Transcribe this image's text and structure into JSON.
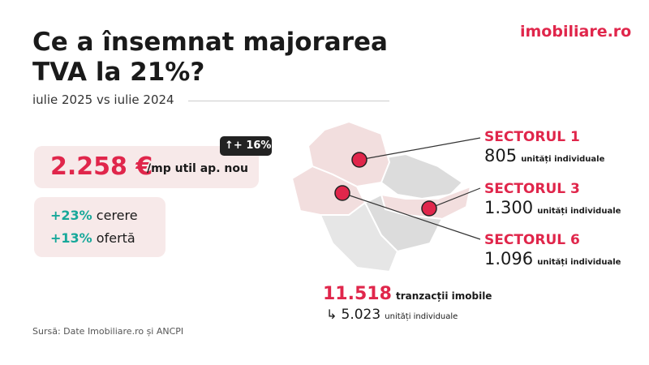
{
  "logo": "imobiliare.ro",
  "header": {
    "title_lines": [
      "Ce a însemnat majorarea",
      "TVA la 21%?"
    ],
    "subtitle": "iulie 2025 vs iulie 2024"
  },
  "price": {
    "value": "2.258 €",
    "unit": "/mp util ap. nou",
    "badge": "+ 16%"
  },
  "stats": [
    {
      "value": "+23%",
      "label": "cerere"
    },
    {
      "value": "+13%",
      "label": "ofertă"
    }
  ],
  "source": "Sursă: Date Imobiliare.ro și ANCPI",
  "sectors": [
    {
      "name": "SECTORUL 1",
      "value": "805",
      "unit": "unități individuale"
    },
    {
      "name": "SECTORUL 3",
      "value": "1.300",
      "unit": "unități individuale"
    },
    {
      "name": "SECTORUL 6",
      "value": "1.096",
      "unit": "unități individuale"
    }
  ],
  "total": {
    "value": "11.518",
    "label": "tranzacții imobile",
    "sub_value": "5.023",
    "sub_label": "unități individuale"
  }
}
